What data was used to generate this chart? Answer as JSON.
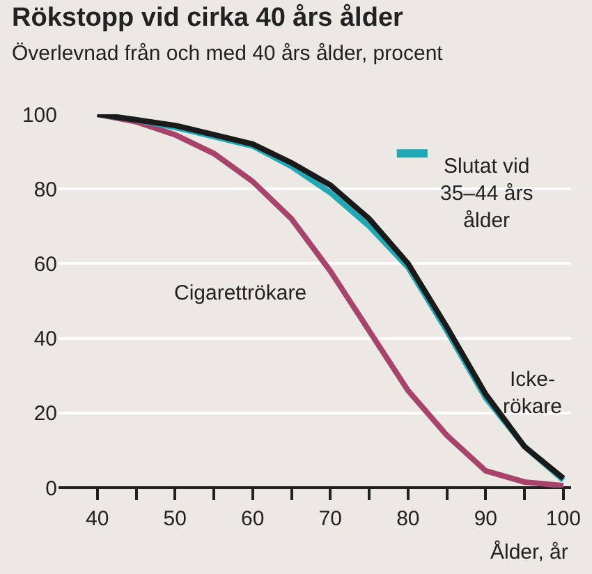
{
  "chart_data": {
    "type": "line",
    "title": "Rökstopp vid cirka 40 års ålder",
    "subtitle": "Överlevnad från och med 40 års ålder, procent",
    "xlabel": "Ålder, år",
    "x": [
      40,
      45,
      50,
      55,
      60,
      65,
      70,
      75,
      80,
      85,
      90,
      95,
      100
    ],
    "series": [
      {
        "name": "Cigarettrökare",
        "color": "#a8436b",
        "values": [
          100,
          98,
          94.5,
          89.5,
          82,
          72,
          58,
          42,
          26,
          14,
          4.5,
          1.5,
          0.5
        ]
      },
      {
        "name": "Slutat vid 35–44 års ålder",
        "color": "#1fa9b5",
        "values": [
          100,
          98.5,
          96.5,
          94,
          91.5,
          86,
          79,
          70,
          59,
          42,
          24,
          11,
          2
        ]
      },
      {
        "name": "Icke-rökare",
        "color": "#1a1a1a",
        "values": [
          100,
          98.5,
          97,
          94.5,
          92,
          87,
          81,
          72,
          60,
          43,
          25,
          11,
          2.5
        ]
      }
    ],
    "xlim": [
      35,
      101
    ],
    "ylim": [
      0,
      100
    ],
    "xticks": [
      40,
      {
        "value": 45,
        "label": null
      },
      50,
      {
        "value": 55,
        "label": null
      },
      60,
      {
        "value": 65,
        "label": null
      },
      70,
      {
        "value": 75,
        "label": null
      },
      80,
      {
        "value": 85,
        "label": null
      },
      90,
      {
        "value": 95,
        "label": null
      },
      100
    ],
    "yticks": [
      0,
      20,
      40,
      60,
      80,
      100
    ],
    "grid": "y",
    "legend": false,
    "marker": "none",
    "line_style": "solid"
  }
}
